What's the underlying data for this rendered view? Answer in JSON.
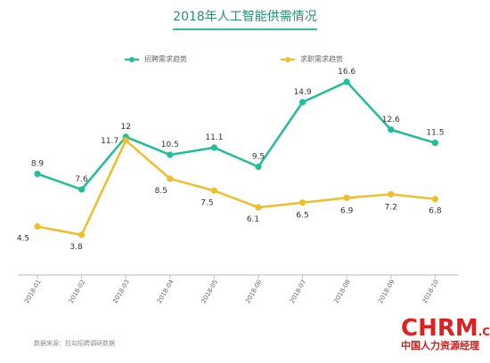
{
  "chart_data": {
    "type": "line",
    "title": "2018年人工智能供需情况",
    "categories": [
      "2018-01",
      "2018-02",
      "2018-03",
      "2018-04",
      "2018-05",
      "2018-06",
      "2018-07",
      "2018-08",
      "2018-09",
      "2018-10"
    ],
    "series": [
      {
        "name": "招聘需求趋势",
        "color": "#1fbf97",
        "values": [
          8.9,
          7.6,
          12,
          10.5,
          11.1,
          9.5,
          14.9,
          16.6,
          12.6,
          11.5
        ]
      },
      {
        "name": "求职需求趋势",
        "color": "#f0be28",
        "values": [
          4.5,
          3.8,
          11.7,
          8.5,
          7.5,
          6.1,
          6.5,
          6.9,
          7.2,
          6.8
        ]
      }
    ],
    "xlabel": "",
    "ylabel": "",
    "grid": false,
    "legend": "top"
  },
  "source_text": "数据来源：拉勾招聘调研数据",
  "watermark": {
    "brand": "CHRM",
    "suffix": ".CN",
    "subtitle": "中国人力资源经理"
  }
}
